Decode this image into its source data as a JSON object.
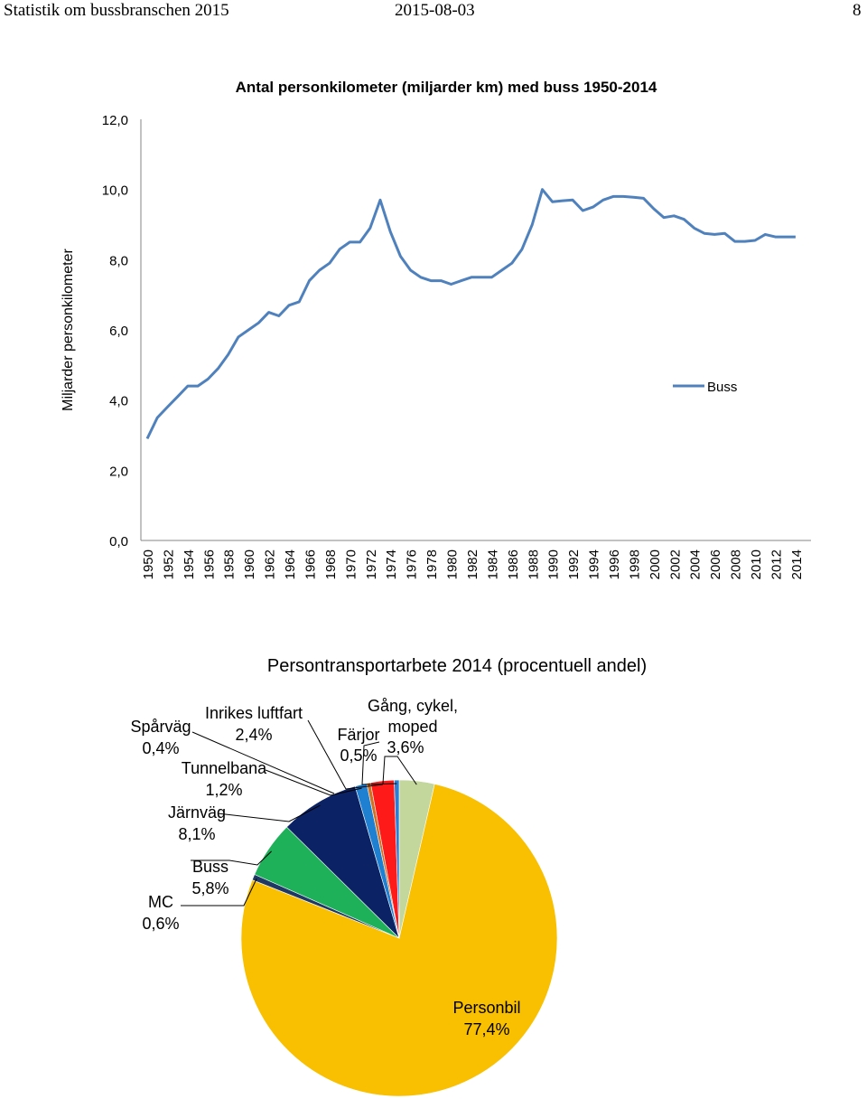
{
  "header": {
    "left": "Statistik om bussbranschen 2015",
    "center": "2015-08-03",
    "right": "8"
  },
  "chart_data": [
    {
      "type": "line",
      "title": "Antal personkilometer (miljarder km) med buss 1950-2014",
      "ylabel": "Miljarder personkilometer",
      "xlabel": "",
      "ylim": [
        0,
        12
      ],
      "yticks": [
        "0,0",
        "2,0",
        "4,0",
        "6,0",
        "8,0",
        "10,0",
        "12,0"
      ],
      "xticks": [
        "1950",
        "1952",
        "1954",
        "1956",
        "1958",
        "1960",
        "1962",
        "1964",
        "1966",
        "1968",
        "1970",
        "1972",
        "1974",
        "1976",
        "1978",
        "1980",
        "1982",
        "1984",
        "1986",
        "1988",
        "1990",
        "1992",
        "1994",
        "1996",
        "1998",
        "2000",
        "2002",
        "2004",
        "2006",
        "2008",
        "2010",
        "2012",
        "2014"
      ],
      "grid": false,
      "legend": "right",
      "color": "#4f81bd",
      "series": [
        {
          "name": "Buss",
          "x": [
            1950,
            1951,
            1952,
            1953,
            1954,
            1955,
            1956,
            1957,
            1958,
            1959,
            1960,
            1961,
            1962,
            1963,
            1964,
            1965,
            1966,
            1967,
            1968,
            1969,
            1970,
            1971,
            1972,
            1973,
            1974,
            1975,
            1976,
            1977,
            1978,
            1979,
            1980,
            1981,
            1982,
            1983,
            1984,
            1985,
            1986,
            1987,
            1988,
            1989,
            1990,
            1991,
            1992,
            1993,
            1994,
            1995,
            1996,
            1997,
            1998,
            1999,
            2000,
            2001,
            2002,
            2003,
            2004,
            2005,
            2006,
            2007,
            2008,
            2009,
            2010,
            2011,
            2012,
            2013,
            2014
          ],
          "values": [
            2.9,
            3.5,
            3.8,
            4.1,
            4.4,
            4.4,
            4.6,
            4.9,
            5.3,
            5.8,
            6.0,
            6.2,
            6.5,
            6.4,
            6.7,
            6.8,
            7.4,
            7.7,
            7.9,
            8.3,
            8.5,
            8.5,
            8.9,
            9.7,
            8.8,
            8.1,
            7.7,
            7.5,
            7.4,
            7.4,
            7.3,
            7.4,
            7.5,
            7.5,
            7.5,
            7.7,
            7.9,
            8.3,
            9.0,
            10.0,
            9.65,
            9.68,
            9.7,
            9.4,
            9.5,
            9.7,
            9.8,
            9.8,
            9.78,
            9.75,
            9.45,
            9.2,
            9.25,
            9.15,
            8.9,
            8.75,
            8.72,
            8.75,
            8.52,
            8.52,
            8.55,
            8.72,
            8.65,
            8.65,
            8.65
          ]
        }
      ]
    },
    {
      "type": "pie",
      "title": "Persontransportarbete 2014 (procentuell andel)",
      "slices": [
        {
          "label": "Gång, cykel, moped",
          "value": 3.6,
          "pct": "3,6%",
          "color": "#c3d69b"
        },
        {
          "label": "Personbil",
          "value": 77.4,
          "pct": "77,4%",
          "color": "#f8c000"
        },
        {
          "label": "MC",
          "value": 0.6,
          "pct": "0,6%",
          "color": "#1f3864"
        },
        {
          "label": "Buss",
          "value": 5.8,
          "pct": "5,8%",
          "color": "#1fb05a"
        },
        {
          "label": "Järnväg",
          "value": 8.1,
          "pct": "8,1%",
          "color": "#0b2264"
        },
        {
          "label": "Tunnelbana",
          "value": 1.2,
          "pct": "1,2%",
          "color": "#1f7fd0"
        },
        {
          "label": "Spårväg",
          "value": 0.4,
          "pct": "0,4%",
          "color": "#d07020"
        },
        {
          "label": "Inrikes luftfart",
          "value": 2.4,
          "pct": "2,4%",
          "color": "#ff1a1a"
        },
        {
          "label": "Färjor",
          "value": 0.5,
          "pct": "0,5%",
          "color": "#2a7fd4"
        }
      ]
    }
  ]
}
